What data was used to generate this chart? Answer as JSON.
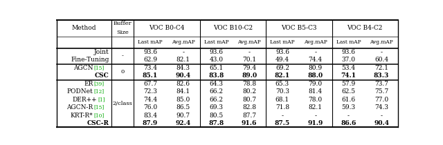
{
  "voc_names": [
    "VOC B0-C4",
    "VOC B10-C2",
    "VOC B5-C3",
    "VOC B4-C2"
  ],
  "sub_columns": [
    "Last mAP",
    "Avg.mAP"
  ],
  "rows": [
    {
      "method": "Joint",
      "buffer": "-",
      "vals": [
        "93.6",
        "-",
        "93.6",
        "-",
        "93.6",
        "-",
        "93.6",
        "-"
      ],
      "bold": false,
      "ref": ""
    },
    {
      "method": "Fine-Tuning",
      "buffer": "-",
      "vals": [
        "62.9",
        "82.1",
        "43.0",
        "70.1",
        "49.4",
        "74.4",
        "37.0",
        "60.4"
      ],
      "bold": false,
      "ref": ""
    },
    {
      "method": "AGCN",
      "buffer": "0",
      "vals": [
        "73.4",
        "84.3",
        "65.1",
        "79.4",
        "69.2",
        "80.9",
        "53.4",
        "72.1"
      ],
      "bold": false,
      "ref": "[15]"
    },
    {
      "method": "CSC",
      "buffer": "0",
      "vals": [
        "85.1",
        "90.4",
        "83.8",
        "89.0",
        "82.1",
        "88.0",
        "74.1",
        "83.3"
      ],
      "bold": true,
      "ref": ""
    },
    {
      "method": "ER",
      "buffer": "2/class",
      "vals": [
        "67.7",
        "82.6",
        "64.3",
        "78.8",
        "65.3",
        "79.0",
        "57.9",
        "73.7"
      ],
      "bold": false,
      "ref": "[39]"
    },
    {
      "method": "PODNet",
      "buffer": "2/class",
      "vals": [
        "72.3",
        "84.1",
        "66.2",
        "80.2",
        "70.3",
        "81.4",
        "62.5",
        "75.7"
      ],
      "bold": false,
      "ref": "[12]"
    },
    {
      "method": "DER++",
      "buffer": "2/class",
      "vals": [
        "74.4",
        "85.0",
        "66.2",
        "80.7",
        "68.1",
        "78.0",
        "61.6",
        "77.0"
      ],
      "bold": false,
      "ref": "[1]"
    },
    {
      "method": "AGCN-R",
      "buffer": "2/class",
      "vals": [
        "76.0",
        "86.5",
        "69.3",
        "82.8",
        "71.8",
        "82.1",
        "59.3",
        "74.3"
      ],
      "bold": false,
      "ref": "[15]"
    },
    {
      "method": "KRT-R*",
      "buffer": "2/class",
      "vals": [
        "83.4",
        "90.7",
        "80.5",
        "87.7",
        "-",
        "-",
        "-",
        "-"
      ],
      "bold": false,
      "ref": "[10]"
    },
    {
      "method": "CSC-R",
      "buffer": "2/class",
      "vals": [
        "87.9",
        "92.4",
        "87.8",
        "91.6",
        "87.5",
        "91.9",
        "86.6",
        "90.4"
      ],
      "bold": true,
      "ref": ""
    }
  ],
  "buffer_groups": {
    "-": [
      0,
      1
    ],
    "0": [
      2,
      3
    ],
    "2/class": [
      4,
      5,
      6,
      7,
      8,
      9
    ]
  },
  "thick_lines_after_rows": [
    1,
    3
  ],
  "green_refs": [
    "[15]",
    "[39]",
    "[12]",
    "[1]",
    "[10]"
  ],
  "green_color": "#00aa00",
  "bg_color": "#ffffff",
  "fs": 6.5
}
